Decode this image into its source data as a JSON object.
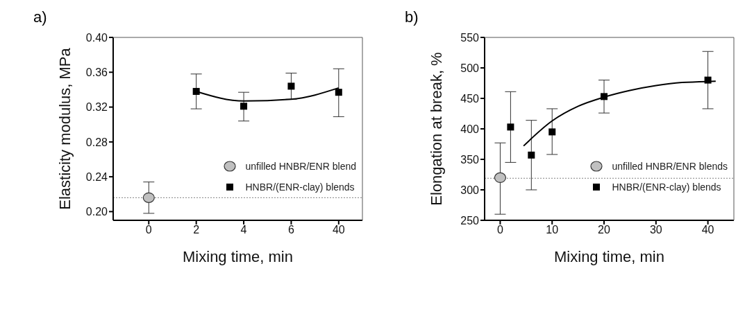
{
  "chart_data": [
    {
      "type": "scatter",
      "title": "a)",
      "xlabel": "Mixing time, min",
      "ylabel": "Elasticity modulus, MPa",
      "categories": [
        "0",
        "2",
        "4",
        "6",
        "40"
      ],
      "ylim": [
        0.19,
        0.4
      ],
      "yticks": [
        {
          "value": 0.2,
          "label": "0.20"
        },
        0.24,
        0.28,
        0.32,
        0.36,
        {
          "value": 0.4,
          "label": "0.40"
        }
      ],
      "grid": false,
      "legend": "right",
      "series": [
        {
          "name": "unfilled HNBR/ENR blend",
          "marker": "circle",
          "color": "#c0c0c0",
          "values": [
            0.216,
            null,
            null,
            null,
            null
          ],
          "errors": [
            [
              0.198,
              0.234
            ],
            null,
            null,
            null,
            null
          ]
        },
        {
          "name": "HNBR/(ENR-clay) blends",
          "marker": "square",
          "color": "#000000",
          "values": [
            null,
            0.338,
            0.321,
            0.344,
            0.337
          ],
          "errors": [
            null,
            [
              0.318,
              0.358
            ],
            [
              0.304,
              0.337
            ],
            [
              0.329,
              0.359
            ],
            [
              0.309,
              0.364
            ]
          ]
        },
        {
          "type": "line",
          "marker": "none",
          "color": "#000000",
          "values": [
            null,
            0.338,
            0.327,
            0.329,
            0.342
          ]
        }
      ],
      "ref_lines": [
        {
          "axis": "y",
          "value": 0.216,
          "color": "#808080",
          "line_style": "dotted"
        }
      ]
    },
    {
      "type": "scatter",
      "title": "b)",
      "xlabel": "Mixing time, min",
      "ylabel": "Elongation at break, %",
      "xlim": [
        -3,
        45
      ],
      "xticks": [
        0,
        10,
        20,
        30,
        40
      ],
      "ylim": [
        250,
        550
      ],
      "yticks": [
        250,
        300,
        350,
        400,
        450,
        500,
        550
      ],
      "grid": false,
      "legend": "right",
      "series": [
        {
          "name": "unfilled HNBR/ENR blends",
          "marker": "circle",
          "color": "#c0c0c0",
          "x": [
            0
          ],
          "values": [
            320
          ],
          "errors": [
            [
              260,
              377
            ]
          ]
        },
        {
          "name": "HNBR/(ENR-clay) blends",
          "marker": "square",
          "color": "#000000",
          "x": [
            2,
            6,
            10,
            20,
            40
          ],
          "values": [
            403,
            357,
            395,
            453,
            480
          ],
          "errors": [
            [
              345,
              461
            ],
            [
              300,
              414
            ],
            [
              358,
              433
            ],
            [
              426,
              480
            ],
            [
              433,
              527
            ]
          ]
        },
        {
          "type": "line",
          "marker": "none",
          "color": "#000000",
          "x": [
            4.5,
            10,
            15,
            20,
            25,
            30,
            35,
            41.5
          ],
          "values": [
            372,
            413,
            437,
            452,
            463,
            471,
            476,
            478
          ]
        }
      ],
      "ref_lines": [
        {
          "axis": "y",
          "value": 319,
          "color": "#808080",
          "line_style": "dotted"
        }
      ]
    }
  ]
}
